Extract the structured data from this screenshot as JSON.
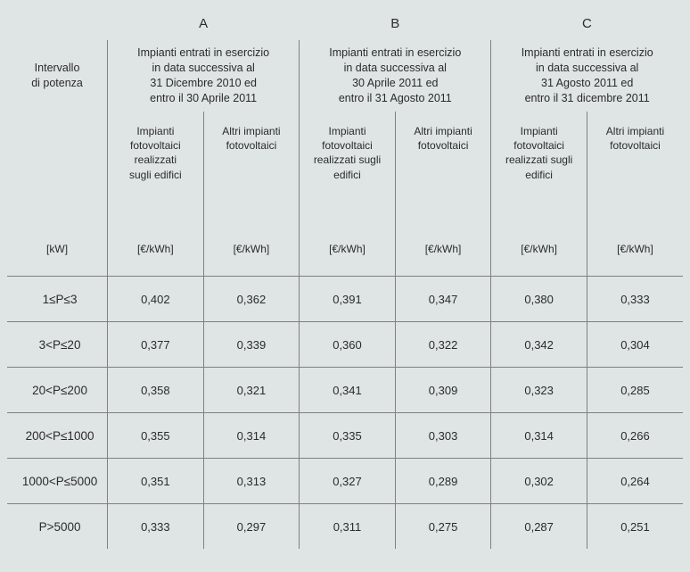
{
  "letters": [
    "A",
    "B",
    "C"
  ],
  "rowHeader": "Intervallo<br>di potenza",
  "periods": [
    "Impianti entrati in esercizio<br>in data successiva al<br>31 Dicembre 2010 ed<br>entro il 30 Aprile 2011",
    "Impianti entrati in esercizio<br>in data successiva al<br>30 Aprile 2011 ed<br>entro il 31 Agosto 2011",
    "Impianti entrati in esercizio<br>in data successiva al<br>31 Agosto 2011  ed<br>entro il 31 dicembre 2011"
  ],
  "subA": "Impianti<br>fotovoltaici<br>realizzati<br>sugli edifici",
  "subAwide": "Impianti<br>fotovoltaici<br>realizzati sugli<br>edifici",
  "subB": "Altri impianti<br>fotovoltaici",
  "unitRow": "[kW]",
  "unitCell": "[€/kWh]",
  "rows": [
    {
      "label": "1≤P≤3",
      "v": [
        "0,402",
        "0,362",
        "0,391",
        "0,347",
        "0,380",
        "0,333"
      ]
    },
    {
      "label": "3<P≤20",
      "v": [
        "0,377",
        "0,339",
        "0,360",
        "0,322",
        "0,342",
        "0,304"
      ]
    },
    {
      "label": "20<P≤200",
      "v": [
        "0,358",
        "0,321",
        "0,341",
        "0,309",
        "0,323",
        "0,285"
      ]
    },
    {
      "label": "200<P≤1000",
      "v": [
        "0,355",
        "0,314",
        "0,335",
        "0,303",
        "0,314",
        "0,266"
      ]
    },
    {
      "label": "1000<P≤5000",
      "v": [
        "0,351",
        "0,313",
        "0,327",
        "0,289",
        "0,302",
        "0,264"
      ]
    },
    {
      "label": "P>5000",
      "v": [
        "0,333",
        "0,297",
        "0,311",
        "0,275",
        "0,287",
        "0,251"
      ]
    }
  ],
  "colors": {
    "bg": "#dfe4e4",
    "line": "#808080",
    "text": "#2b2b2b"
  }
}
